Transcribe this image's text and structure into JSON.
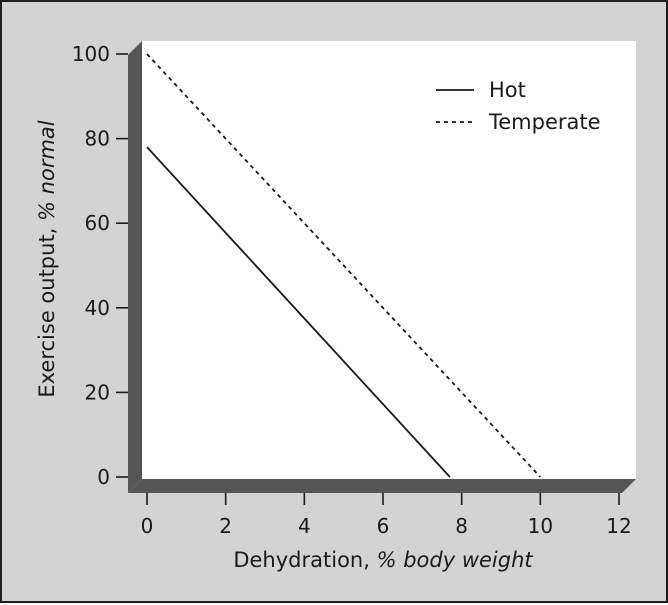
{
  "chart_data": {
    "type": "line",
    "xlabel": {
      "main": "Dehydration, ",
      "italic": "% body weight"
    },
    "ylabel": {
      "main": "Exercise output, ",
      "italic": "% normal"
    },
    "xlim": [
      0,
      12
    ],
    "ylim": [
      0,
      100
    ],
    "xticks": [
      0,
      2,
      4,
      6,
      8,
      10,
      12
    ],
    "yticks": [
      0,
      20,
      40,
      60,
      80,
      100
    ],
    "grid": false,
    "legend_position": "top-right",
    "series": [
      {
        "name": "Hot",
        "style": "solid",
        "color": "#1a1a1a",
        "x": [
          0,
          7.7
        ],
        "y": [
          78,
          0
        ]
      },
      {
        "name": "Temperate",
        "style": "dashed",
        "color": "#1a1a1a",
        "x": [
          0,
          10
        ],
        "y": [
          100,
          0
        ]
      }
    ]
  },
  "colors": {
    "frame_background": "#d3d3d3",
    "plot_background": "#ffffff",
    "axis_bar": "#555555",
    "text": "#1a1a1a"
  }
}
